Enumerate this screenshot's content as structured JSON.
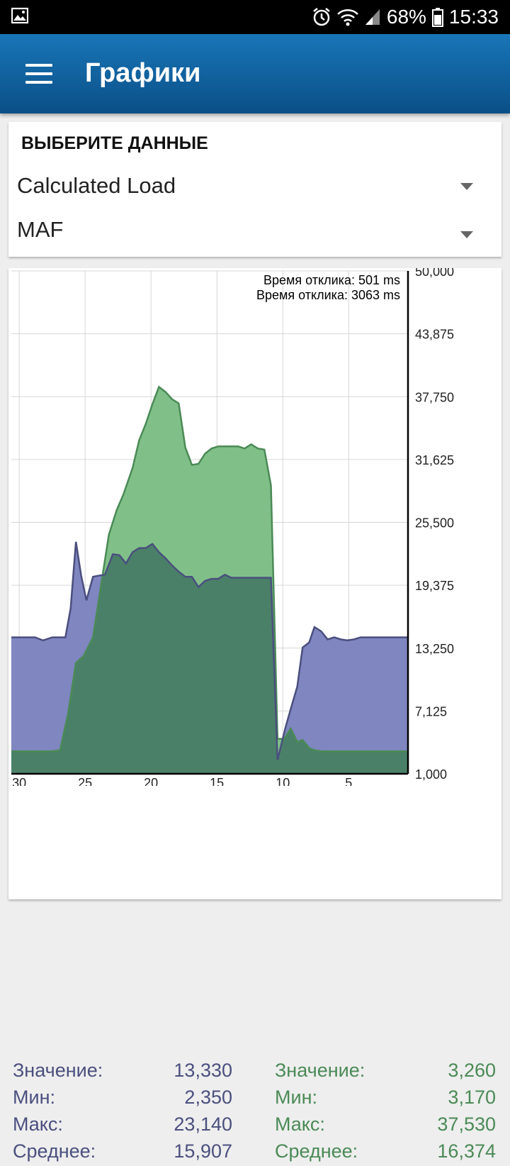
{
  "status_bar": {
    "battery": "68%",
    "time": "15:33",
    "icons": [
      "image-icon",
      "alarm-icon",
      "wifi-icon",
      "signal-icon",
      "battery-icon"
    ]
  },
  "app_bar": {
    "title": "Графики",
    "menu_icon": "hamburger-menu-icon"
  },
  "selector": {
    "title": "ВЫБЕРИТЕ ДАННЫЕ",
    "spinner_1": "Calculated Load",
    "spinner_2": "MAF"
  },
  "response_times": {
    "series_1": "Время отклика: 501 ms",
    "series_2": "Время отклика: 3063 ms"
  },
  "colors": {
    "series_1_line": "#4a4f7e",
    "series_1_fill": "#7f86c0",
    "series_2_line": "#4a8a56",
    "series_2_fill": "#80c088",
    "overlap_fill": "#4a8068",
    "app_bar": "#0d5e9c"
  },
  "stats": {
    "left": {
      "value_label": "Значение:",
      "value": "13,330",
      "min_label": "Мин:",
      "min": "2,350",
      "max_label": "Макс:",
      "max": "23,140",
      "avg_label": "Среднее:",
      "avg": "15,907"
    },
    "right": {
      "value_label": "Значение:",
      "value": "3,260",
      "min_label": "Мин:",
      "min": "3,170",
      "max_label": "Макс:",
      "max": "37,530",
      "avg_label": "Среднее:",
      "avg": "16,374"
    }
  },
  "chart_data": {
    "type": "area",
    "x_ticks": [
      "30",
      "25",
      "20",
      "15",
      "10",
      "5"
    ],
    "x_tick_values": [
      30,
      25,
      20,
      15,
      10,
      5
    ],
    "y_ticks": [
      "50,000",
      "43,875",
      "37,750",
      "31,625",
      "25,500",
      "19,375",
      "13,250",
      "7,125",
      "1,000"
    ],
    "y_tick_values": [
      50000,
      43875,
      37750,
      31625,
      25500,
      19375,
      13250,
      7125,
      1000
    ],
    "xlim": [
      30.6,
      0.5
    ],
    "ylim": [
      1000,
      50000
    ],
    "grid": true,
    "y_axis_side": "right",
    "series": [
      {
        "x": [
          30.6,
          28.8,
          28.2,
          27.5,
          26.5,
          26.1,
          25.7,
          25.3,
          24.9,
          24.4,
          24.0,
          23.5,
          22.9,
          22.4,
          21.9,
          21.4,
          20.9,
          20.4,
          19.9,
          19.4,
          18.9,
          18.4,
          17.9,
          17.4,
          16.9,
          16.4,
          15.9,
          15.4,
          14.9,
          14.4,
          13.9,
          13.4,
          12.9,
          12.4,
          11.9,
          11.4,
          10.9,
          10.4,
          9.8,
          9.4,
          8.9,
          8.5,
          8.0,
          7.6,
          7.1,
          6.6,
          6.1,
          5.6,
          5.1,
          4.6,
          4.1,
          3.6,
          3.1,
          2.6,
          2.1,
          1.6,
          1.1,
          0.5
        ],
        "y": [
          14300,
          14300,
          14000,
          14300,
          14300,
          17100,
          23600,
          20300,
          17900,
          20200,
          20300,
          20400,
          22400,
          22300,
          21500,
          22600,
          23000,
          23000,
          23400,
          22600,
          22000,
          21300,
          20700,
          20200,
          20200,
          19200,
          19800,
          20000,
          20000,
          20400,
          20100,
          20100,
          20100,
          20100,
          20100,
          20100,
          20100,
          2350,
          5500,
          7300,
          9500,
          13300,
          13800,
          15300,
          14900,
          14100,
          14300,
          14100,
          14000,
          14100,
          14300,
          14300,
          14300,
          14300,
          14300,
          14300,
          14300,
          14300
        ]
      },
      {
        "x": [
          30.6,
          29.0,
          27.5,
          26.9,
          26.3,
          25.7,
          25.1,
          24.4,
          23.9,
          23.2,
          22.6,
          22.1,
          21.4,
          20.9,
          20.4,
          19.9,
          19.4,
          18.9,
          18.4,
          17.9,
          17.4,
          16.9,
          16.4,
          15.9,
          15.4,
          14.9,
          14.4,
          13.9,
          13.4,
          12.9,
          12.4,
          11.9,
          11.4,
          10.9,
          10.4,
          9.9,
          9.4,
          8.9,
          8.5,
          8.0,
          7.6,
          7.1,
          6.6,
          6.1,
          5.6,
          5.1,
          4.6,
          4.1,
          3.6,
          3.1,
          2.6,
          2.1,
          1.6,
          1.1,
          0.5
        ],
        "y": [
          3200,
          3200,
          3200,
          3300,
          6800,
          11800,
          12500,
          14300,
          18500,
          24300,
          26700,
          28200,
          30800,
          33500,
          35100,
          37000,
          38700,
          38200,
          37500,
          37100,
          32800,
          31100,
          31200,
          32200,
          32700,
          32900,
          32900,
          32900,
          32900,
          32700,
          33100,
          32700,
          32600,
          29100,
          4400,
          4400,
          5400,
          4100,
          4300,
          3500,
          3300,
          3200,
          3200,
          3200,
          3200,
          3200,
          3200,
          3200,
          3200,
          3200,
          3200,
          3200,
          3200,
          3200,
          3200
        ]
      }
    ]
  }
}
